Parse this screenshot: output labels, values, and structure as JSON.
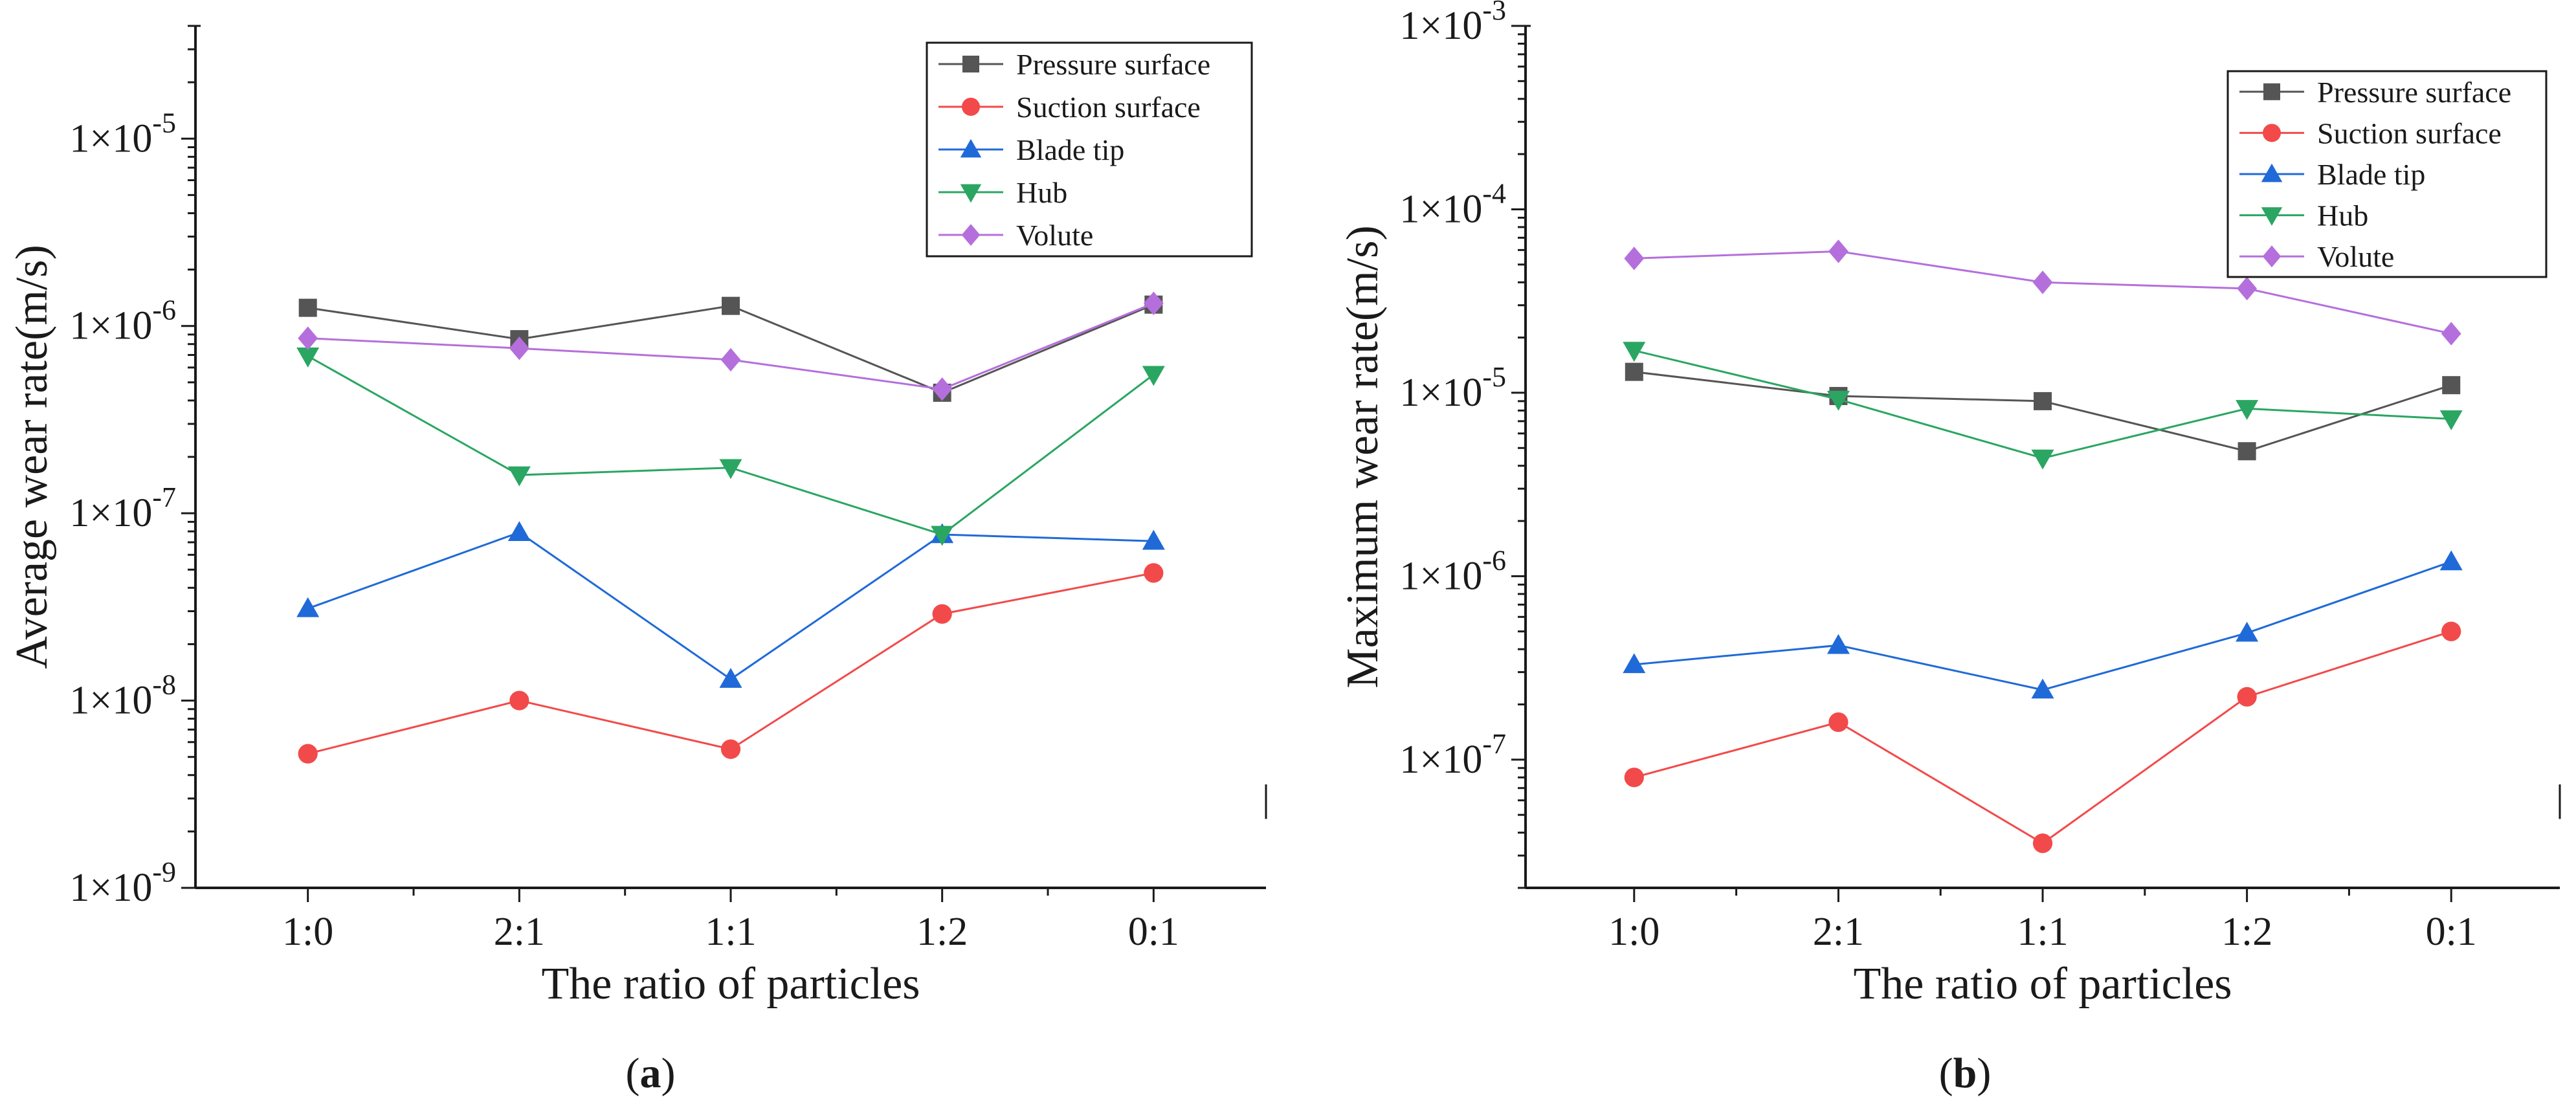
{
  "chart_data": [
    {
      "type": "line",
      "panel_label": "a",
      "title": "",
      "xlabel": "The ratio of particles",
      "ylabel": "Average wear rate(m/s)",
      "yscale": "log",
      "ylim": [
        1e-09,
        4e-05
      ],
      "yticks": [
        1e-09,
        1e-08,
        1e-07,
        1e-06,
        1e-05
      ],
      "ytick_labels": [
        {
          "base": "1×10",
          "exp": "-9"
        },
        {
          "base": "1×10",
          "exp": "-8"
        },
        {
          "base": "1×10",
          "exp": "-7"
        },
        {
          "base": "1×10",
          "exp": "-6"
        },
        {
          "base": "1×10",
          "exp": "-5"
        }
      ],
      "categories": [
        "1:0",
        "2:1",
        "1:1",
        "1:2",
        "0:1"
      ],
      "legend_position": "top-right",
      "series": [
        {
          "name": "Pressure surface",
          "color": "#555555",
          "marker": "square",
          "values": [
            1.25e-06,
            8.5e-07,
            1.28e-06,
            4.4e-07,
            1.3e-06
          ]
        },
        {
          "name": "Suction surface",
          "color": "#f24a4a",
          "marker": "circle",
          "values": [
            5.2e-09,
            1e-08,
            5.5e-09,
            2.9e-08,
            4.8e-08
          ]
        },
        {
          "name": "Blade tip",
          "color": "#1f6ad8",
          "marker": "triangle-up",
          "values": [
            3.1e-08,
            7.9e-08,
            1.3e-08,
            7.7e-08,
            7.1e-08
          ]
        },
        {
          "name": "Hub",
          "color": "#2aa662",
          "marker": "triangle-down",
          "values": [
            6.9e-07,
            1.6e-07,
            1.75e-07,
            7.7e-08,
            5.5e-07
          ]
        },
        {
          "name": "Volute",
          "color": "#b56fdc",
          "marker": "diamond",
          "values": [
            8.6e-07,
            7.6e-07,
            6.6e-07,
            4.6e-07,
            1.32e-06
          ]
        }
      ]
    },
    {
      "type": "line",
      "panel_label": "b",
      "title": "",
      "xlabel": "The ratio of particles",
      "ylabel": "Maximum wear rate(m/s)",
      "yscale": "log",
      "ylim": [
        2e-08,
        0.001
      ],
      "yticks": [
        1e-07,
        1e-06,
        1e-05,
        0.0001,
        0.001
      ],
      "ytick_labels": [
        {
          "base": "1×10",
          "exp": "-7"
        },
        {
          "base": "1×10",
          "exp": "-6"
        },
        {
          "base": "1×10",
          "exp": "-5"
        },
        {
          "base": "1×10",
          "exp": "-4"
        },
        {
          "base": "1×10",
          "exp": "-3"
        }
      ],
      "categories": [
        "1:0",
        "2:1",
        "1:1",
        "1:2",
        "0:1"
      ],
      "legend_position": "top-right",
      "series": [
        {
          "name": "Pressure surface",
          "color": "#555555",
          "marker": "square",
          "values": [
            1.3e-05,
            9.6e-06,
            9e-06,
            4.8e-06,
            1.1e-05
          ]
        },
        {
          "name": "Suction surface",
          "color": "#f24a4a",
          "marker": "circle",
          "values": [
            8e-08,
            1.6e-07,
            3.5e-08,
            2.2e-07,
            5e-07
          ]
        },
        {
          "name": "Blade tip",
          "color": "#1f6ad8",
          "marker": "triangle-up",
          "values": [
            3.3e-07,
            4.2e-07,
            2.4e-07,
            4.9e-07,
            1.2e-06
          ]
        },
        {
          "name": "Hub",
          "color": "#2aa662",
          "marker": "triangle-down",
          "values": [
            1.7e-05,
            9.2e-06,
            4.4e-06,
            8.2e-06,
            7.2e-06
          ]
        },
        {
          "name": "Volute",
          "color": "#b56fdc",
          "marker": "diamond",
          "values": [
            5.4e-05,
            5.9e-05,
            4e-05,
            3.7e-05,
            2.1e-05
          ]
        }
      ]
    }
  ]
}
